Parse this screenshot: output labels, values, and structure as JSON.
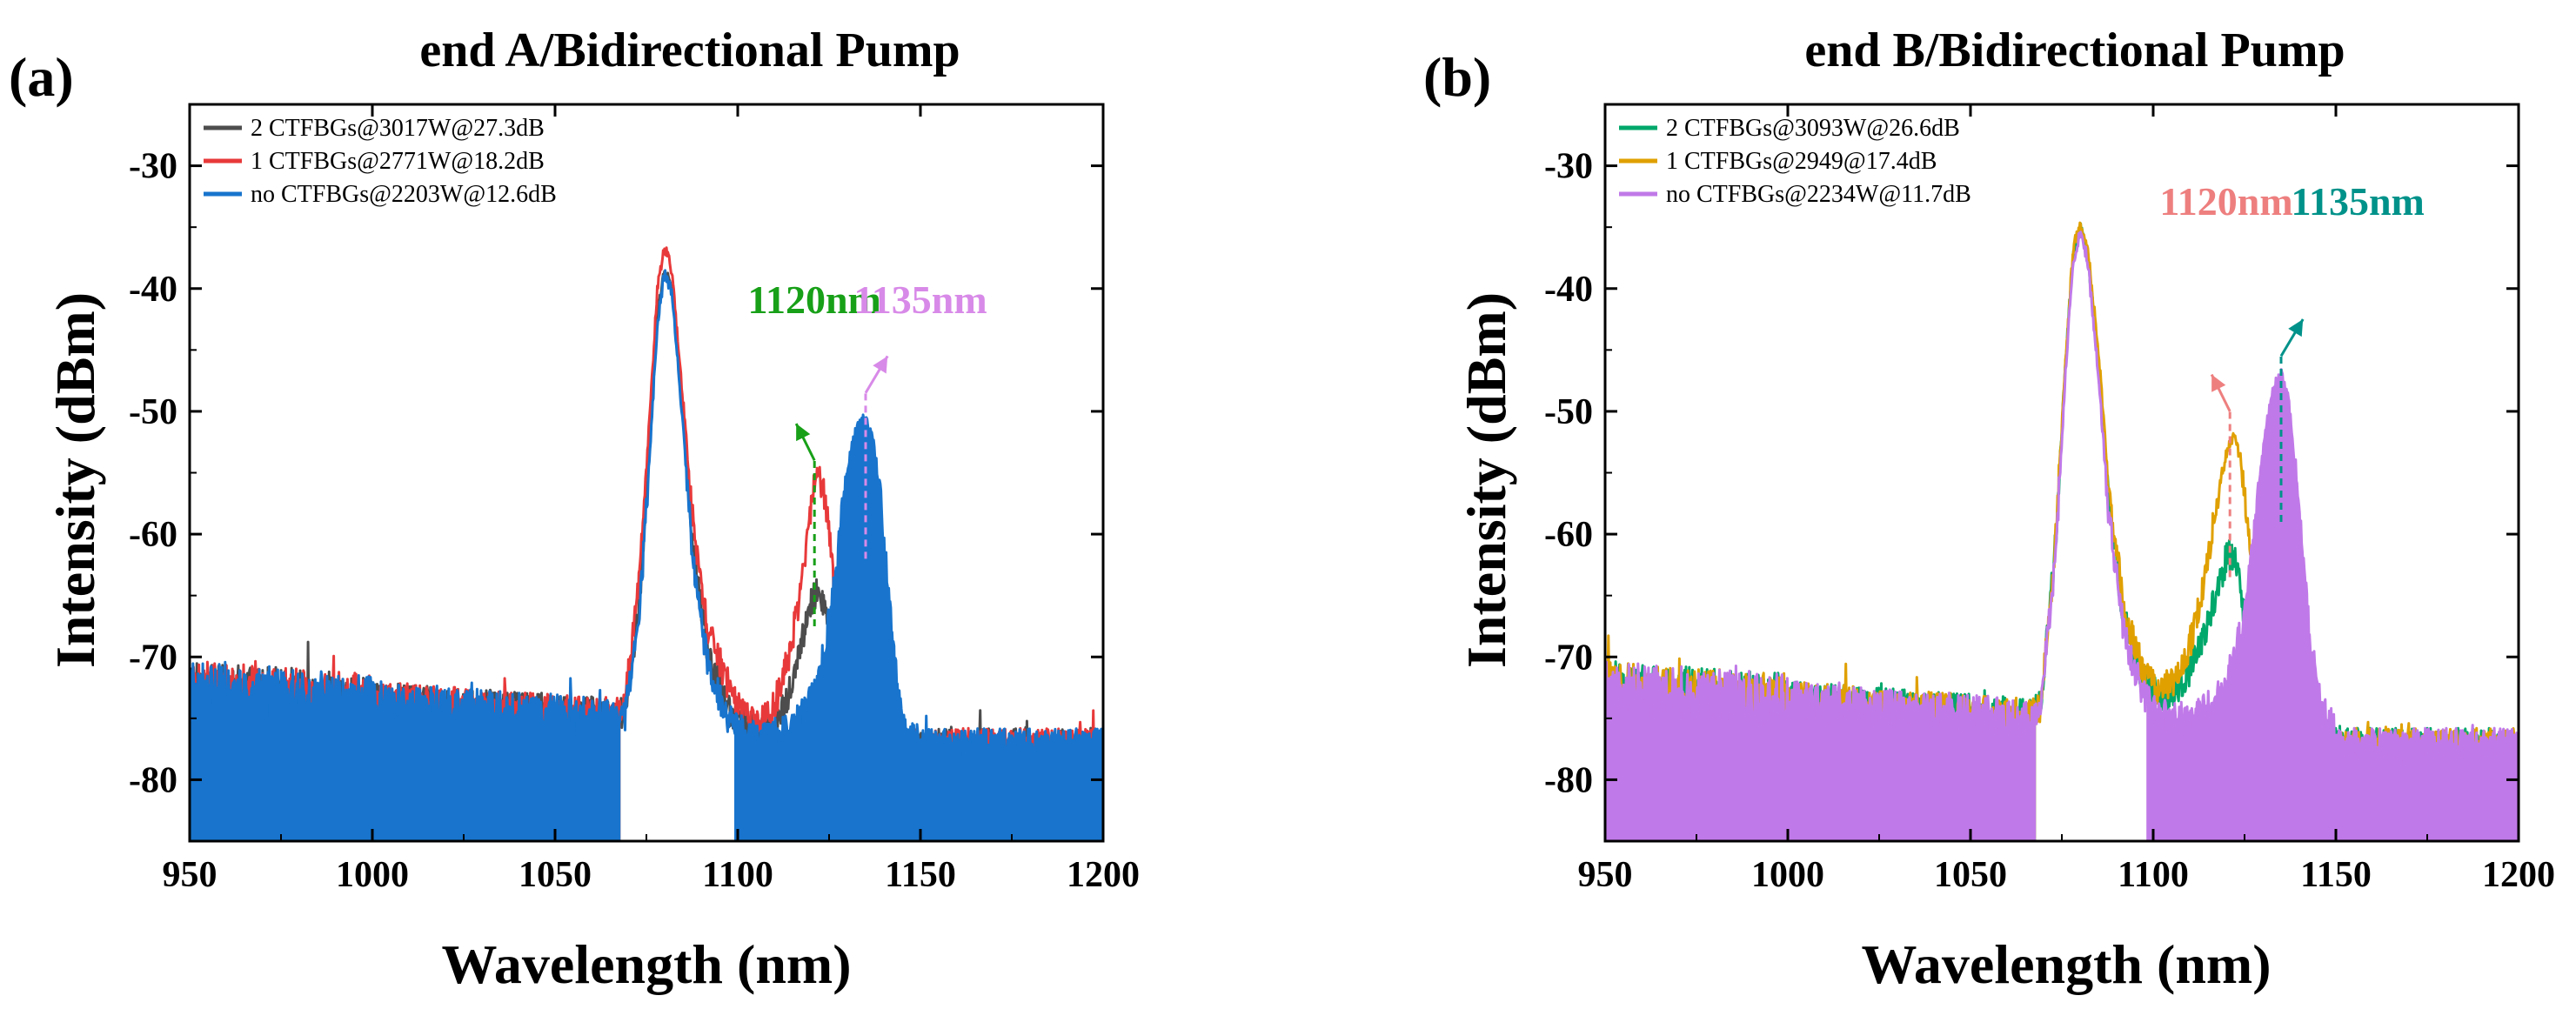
{
  "chart_data": [
    {
      "panel_label": "(a)",
      "type": "line",
      "title": "end A/Bidirectional Pump",
      "xlabel": "Wavelength (nm)",
      "ylabel": "Intensity (dBm)",
      "xlim": [
        950,
        1200
      ],
      "ylim": [
        -85,
        -25
      ],
      "xticks": [
        950,
        1000,
        1050,
        1100,
        1150,
        1200
      ],
      "yticks": [
        -80,
        -70,
        -60,
        -50,
        -40,
        -30
      ],
      "legend_position": "top-left",
      "series": [
        {
          "name": "2 CTFBGs@3017W@27.3dB",
          "color": "#4d4d4d",
          "edge_lo": 1068,
          "edge_hi": 1145,
          "points": [
            [
              1065,
              -75
            ],
            [
              1069,
              -74.5
            ],
            [
              1073,
              -66
            ],
            [
              1076,
              -52
            ],
            [
              1078,
              -42
            ],
            [
              1080,
              -38.5
            ],
            [
              1082,
              -40
            ],
            [
              1085,
              -50
            ],
            [
              1088,
              -62
            ],
            [
              1092,
              -70
            ],
            [
              1097,
              -74
            ],
            [
              1100,
              -75
            ],
            [
              1106,
              -76
            ],
            [
              1110,
              -76
            ],
            [
              1114,
              -73
            ],
            [
              1118,
              -68
            ],
            [
              1120,
              -65.5
            ],
            [
              1122,
              -64.5
            ],
            [
              1124,
              -66.5
            ],
            [
              1126,
              -71
            ],
            [
              1128,
              -76
            ],
            [
              1132,
              -77
            ],
            [
              1140,
              -77
            ],
            [
              1148,
              -77
            ]
          ]
        },
        {
          "name": "1 CTFBGs@2771W@18.2dB",
          "color": "#e8393a",
          "edge_lo": 1068,
          "edge_hi": 1145,
          "points": [
            [
              1065,
              -75
            ],
            [
              1069,
              -74
            ],
            [
              1073,
              -64
            ],
            [
              1076,
              -50
            ],
            [
              1078,
              -40
            ],
            [
              1080,
              -36.5
            ],
            [
              1082,
              -38.5
            ],
            [
              1085,
              -49
            ],
            [
              1088,
              -60
            ],
            [
              1092,
              -68
            ],
            [
              1097,
              -72
            ],
            [
              1101,
              -74.5
            ],
            [
              1106,
              -75.5
            ],
            [
              1110,
              -74
            ],
            [
              1114,
              -70
            ],
            [
              1117,
              -65
            ],
            [
              1119,
              -60
            ],
            [
              1121,
              -56
            ],
            [
              1122,
              -55
            ],
            [
              1124,
              -57
            ],
            [
              1126,
              -63
            ],
            [
              1128,
              -70
            ],
            [
              1131,
              -75
            ],
            [
              1136,
              -77
            ],
            [
              1142,
              -77
            ],
            [
              1148,
              -77
            ]
          ]
        },
        {
          "name": "no CTFBGs@2203W@12.6dB",
          "color": "#1874cd",
          "edge_lo": 1068,
          "edge_hi": 1099,
          "points": [
            [
              1065,
              -75
            ],
            [
              1069,
              -75
            ],
            [
              1073,
              -67
            ],
            [
              1076,
              -53
            ],
            [
              1078,
              -43
            ],
            [
              1080,
              -38.5
            ],
            [
              1082,
              -40.5
            ],
            [
              1085,
              -51
            ],
            [
              1088,
              -63
            ],
            [
              1092,
              -71
            ],
            [
              1097,
              -75
            ],
            [
              1101,
              -76
            ],
            [
              1106,
              -76.5
            ],
            [
              1112,
              -76
            ],
            [
              1117,
              -75
            ],
            [
              1121,
              -73
            ],
            [
              1124,
              -69
            ],
            [
              1127,
              -63
            ],
            [
              1129,
              -57
            ],
            [
              1131,
              -53
            ],
            [
              1133,
              -51
            ],
            [
              1135,
              -50.5
            ],
            [
              1137,
              -52
            ],
            [
              1139,
              -57
            ],
            [
              1141,
              -64
            ],
            [
              1143,
              -71
            ],
            [
              1146,
              -76
            ],
            [
              1150,
              -77
            ]
          ]
        }
      ],
      "annotations": [
        {
          "text": "1120nm",
          "color": "#18a018",
          "at": 1121,
          "ypeak": -55.5,
          "label_x": 1121,
          "label_y": -42,
          "arrow_dx": -5
        },
        {
          "text": "1135nm",
          "color": "#d88ae8",
          "at": 1135,
          "ypeak": -50,
          "label_x": 1150,
          "label_y": -42,
          "arrow_dx": 6
        }
      ]
    },
    {
      "panel_label": "(b)",
      "type": "line",
      "title": "end B/Bidirectional Pump",
      "xlabel": "Wavelength (nm)",
      "ylabel": "Intensity (dBm)",
      "xlim": [
        950,
        1200
      ],
      "ylim": [
        -85,
        -25
      ],
      "xticks": [
        950,
        1000,
        1050,
        1100,
        1150,
        1200
      ],
      "yticks": [
        -80,
        -70,
        -60,
        -50,
        -40,
        -30
      ],
      "legend_position": "top-left",
      "series": [
        {
          "name": "2 CTFBGs@3093W@26.6dB",
          "color": "#00a86b",
          "edge_lo": 1068,
          "edge_hi": 1147,
          "points": [
            [
              1065,
              -75
            ],
            [
              1069,
              -74
            ],
            [
              1073,
              -62
            ],
            [
              1076,
              -46
            ],
            [
              1078,
              -37.5
            ],
            [
              1080,
              -35
            ],
            [
              1082,
              -37
            ],
            [
              1085,
              -46
            ],
            [
              1088,
              -58
            ],
            [
              1092,
              -67
            ],
            [
              1097,
              -71.5
            ],
            [
              1101,
              -73
            ],
            [
              1106,
              -73
            ],
            [
              1110,
              -71
            ],
            [
              1114,
              -68
            ],
            [
              1117,
              -65
            ],
            [
              1120,
              -62
            ],
            [
              1122,
              -61.5
            ],
            [
              1124,
              -64
            ],
            [
              1126,
              -70
            ],
            [
              1128,
              -76
            ],
            [
              1132,
              -78
            ],
            [
              1140,
              -77
            ],
            [
              1150,
              -77
            ]
          ]
        },
        {
          "name": "1 CTFBGs@2949@17.4dB",
          "color": "#e0a000",
          "edge_lo": 1068,
          "edge_hi": 1147,
          "points": [
            [
              1065,
              -75
            ],
            [
              1069,
              -74
            ],
            [
              1073,
              -62
            ],
            [
              1076,
              -46
            ],
            [
              1078,
              -37
            ],
            [
              1080,
              -34.5
            ],
            [
              1082,
              -36.5
            ],
            [
              1085,
              -45
            ],
            [
              1088,
              -57
            ],
            [
              1092,
              -66
            ],
            [
              1097,
              -71
            ],
            [
              1101,
              -72.5
            ],
            [
              1106,
              -72
            ],
            [
              1110,
              -69
            ],
            [
              1114,
              -64
            ],
            [
              1117,
              -58
            ],
            [
              1120,
              -53.5
            ],
            [
              1122,
              -52
            ],
            [
              1124,
              -54
            ],
            [
              1126,
              -60
            ],
            [
              1128,
              -66
            ],
            [
              1130,
              -70
            ],
            [
              1133,
              -72
            ],
            [
              1136,
              -73
            ],
            [
              1140,
              -75
            ],
            [
              1144,
              -76.5
            ],
            [
              1150,
              -77
            ]
          ]
        },
        {
          "name": "no CTFBGs@2234W@11.7dB",
          "color": "#c079e8",
          "edge_lo": 1068,
          "edge_hi": 1098,
          "points": [
            [
              1065,
              -75
            ],
            [
              1069,
              -74.5
            ],
            [
              1073,
              -63
            ],
            [
              1076,
              -47
            ],
            [
              1078,
              -38
            ],
            [
              1080,
              -35.5
            ],
            [
              1082,
              -37.5
            ],
            [
              1085,
              -47
            ],
            [
              1088,
              -59
            ],
            [
              1092,
              -68
            ],
            [
              1097,
              -73
            ],
            [
              1101,
              -74.5
            ],
            [
              1106,
              -75
            ],
            [
              1112,
              -74.5
            ],
            [
              1117,
              -73.5
            ],
            [
              1121,
              -71
            ],
            [
              1124,
              -68
            ],
            [
              1127,
              -62
            ],
            [
              1129,
              -56
            ],
            [
              1131,
              -51
            ],
            [
              1133,
              -48
            ],
            [
              1135,
              -47
            ],
            [
              1137,
              -49
            ],
            [
              1139,
              -55
            ],
            [
              1141,
              -62
            ],
            [
              1143,
              -69
            ],
            [
              1146,
              -74
            ],
            [
              1150,
              -76
            ]
          ]
        }
      ],
      "annotations": [
        {
          "text": "1120nm",
          "color": "#ee7f7f",
          "at": 1121,
          "ypeak": -51.5,
          "label_x": 1120,
          "label_y": -34,
          "arrow_dx": -5
        },
        {
          "text": "1135nm",
          "color": "#00928a",
          "at": 1135,
          "ypeak": -47,
          "label_x": 1156,
          "label_y": -34,
          "arrow_dx": 6
        }
      ]
    }
  ]
}
